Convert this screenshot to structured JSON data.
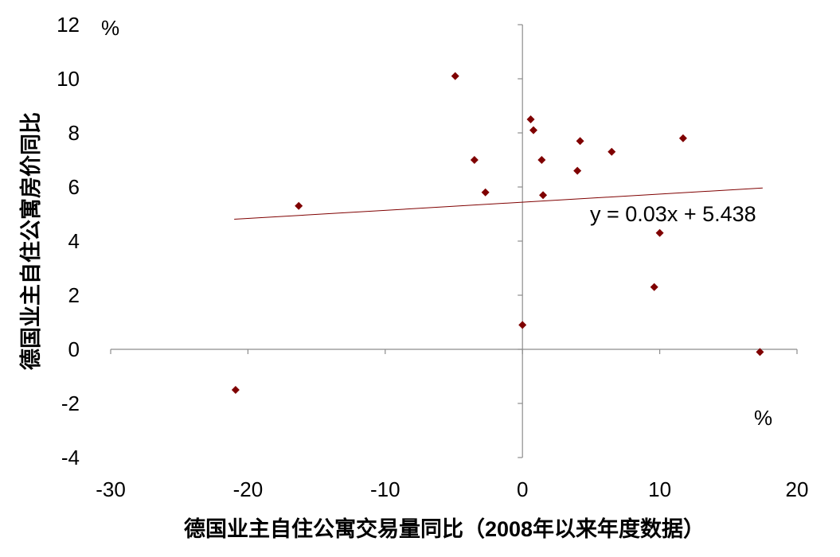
{
  "chart_data": {
    "type": "scatter",
    "title": "",
    "xlabel": "德国业主自住公寓交易量同比（2008年以来年度数据）",
    "ylabel": "德国业主自住公寓房价同比",
    "x_unit": "%",
    "y_unit": "%",
    "xlim": [
      -30,
      20
    ],
    "ylim": [
      -4,
      12
    ],
    "x_ticks": [
      -30,
      -20,
      -10,
      0,
      10,
      20
    ],
    "y_ticks": [
      -4,
      -2,
      0,
      2,
      4,
      6,
      8,
      10,
      12
    ],
    "grid": false,
    "legend": "none",
    "marker_color": "#7f0000",
    "trendline_color": "#7f0000",
    "points": [
      {
        "x": -20.9,
        "y": -1.5
      },
      {
        "x": -16.3,
        "y": 5.3
      },
      {
        "x": -4.9,
        "y": 10.1
      },
      {
        "x": -3.5,
        "y": 7.0
      },
      {
        "x": -2.7,
        "y": 5.8
      },
      {
        "x": 0.0,
        "y": 0.9
      },
      {
        "x": 0.6,
        "y": 8.5
      },
      {
        "x": 0.8,
        "y": 8.1
      },
      {
        "x": 1.4,
        "y": 7.0
      },
      {
        "x": 1.5,
        "y": 5.7
      },
      {
        "x": 4.0,
        "y": 6.6
      },
      {
        "x": 4.2,
        "y": 7.7
      },
      {
        "x": 6.5,
        "y": 7.3
      },
      {
        "x": 9.6,
        "y": 2.3
      },
      {
        "x": 10.0,
        "y": 4.3
      },
      {
        "x": 11.7,
        "y": 7.8
      },
      {
        "x": 17.3,
        "y": -0.1
      }
    ],
    "trendline": {
      "slope": 0.03,
      "intercept": 5.438,
      "x_start": -21,
      "x_end": 17.5,
      "equation": "y = 0.03x + 5.438"
    }
  }
}
